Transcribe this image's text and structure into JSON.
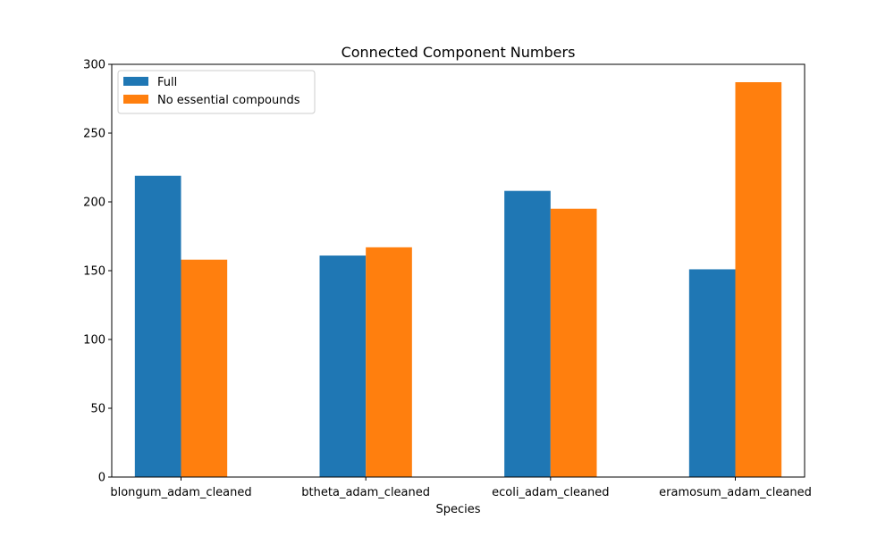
{
  "chart_data": {
    "type": "bar",
    "title": "Connected Component Numbers",
    "xlabel": "Species",
    "ylabel": "",
    "categories": [
      "blongum_adam_cleaned",
      "btheta_adam_cleaned",
      "ecoli_adam_cleaned",
      "eramosum_adam_cleaned"
    ],
    "series": [
      {
        "name": "Full",
        "color": "#1f77b4",
        "values": [
          219,
          161,
          208,
          151
        ]
      },
      {
        "name": "No essential compounds",
        "color": "#ff7f0e",
        "values": [
          158,
          167,
          195,
          287
        ]
      }
    ],
    "ylim": [
      0,
      300
    ],
    "yticks": [
      0,
      50,
      100,
      150,
      200,
      250,
      300
    ],
    "grid": false,
    "legend_position": "top-left"
  }
}
